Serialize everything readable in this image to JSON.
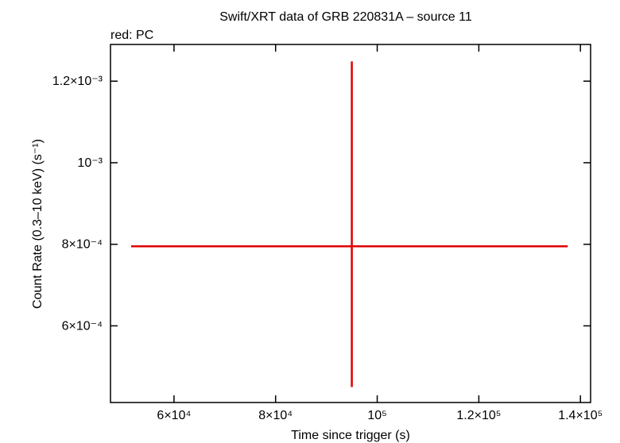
{
  "chart_data": {
    "type": "errorbar",
    "title": "Swift/XRT data of GRB 220831A – source 11",
    "subtitle": "red: PC",
    "x_label": "Time since trigger (s)",
    "y_label": "Count Rate (0.3–10 keV) (s⁻¹)",
    "xlim": [
      47500,
      142000
    ],
    "xticks": [
      {
        "value": 60000,
        "label": "6×10⁴"
      },
      {
        "value": 80000,
        "label": "8×10⁴"
      },
      {
        "value": 100000,
        "label": "10⁵"
      },
      {
        "value": 120000,
        "label": "1.2×10⁵"
      },
      {
        "value": 140000,
        "label": "1.4×10⁵"
      }
    ],
    "ylim": [
      0.000412,
      0.00129
    ],
    "yticks": [
      {
        "value": 0.0006,
        "label": "6×10⁻⁴"
      },
      {
        "value": 0.0008,
        "label": "8×10⁻⁴"
      },
      {
        "value": 0.001,
        "label": "10⁻³"
      },
      {
        "value": 0.0012,
        "label": "1.2×10⁻³"
      }
    ],
    "series": [
      {
        "color": "#e00000",
        "x": [
          95000
        ],
        "x_lo": [
          51560
        ],
        "x_hi": [
          137500
        ],
        "values": [
          0.000795
        ],
        "y_lo": [
          0.00045
        ],
        "y_hi": [
          0.0012485
        ]
      }
    ]
  }
}
